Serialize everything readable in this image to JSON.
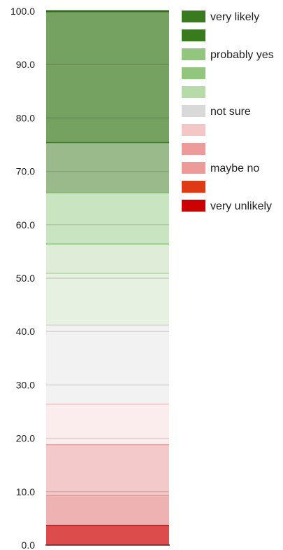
{
  "chart_data": {
    "type": "bar",
    "stacked": true,
    "title": "",
    "xlabel": "",
    "ylabel": "",
    "ylim": [
      0,
      100
    ],
    "yticks": [
      "0.0",
      "10.0",
      "20.0",
      "30.0",
      "40.0",
      "50.0",
      "60.0",
      "70.0",
      "80.0",
      "90.0",
      "100.0"
    ],
    "grid": true,
    "legend_position": "right",
    "segments": [
      {
        "from": 0.0,
        "to": 3.8,
        "fill": "#dd4c4c",
        "edge": "#cc1111"
      },
      {
        "from": 3.8,
        "to": 9.4,
        "fill": "#efb2b2",
        "edge": "#e39a9a"
      },
      {
        "from": 9.4,
        "to": 18.9,
        "fill": "#f4c9c9",
        "edge": "#e8a3a3"
      },
      {
        "from": 18.9,
        "to": 26.5,
        "fill": "#fbeded",
        "edge": "#f4c6c6"
      },
      {
        "from": 26.5,
        "to": 41.3,
        "fill": "#f2f2f2",
        "edge": "#d8d8d8"
      },
      {
        "from": 41.3,
        "to": 51.0,
        "fill": "#e7f1e2",
        "edge": "#b8daae"
      },
      {
        "from": 51.0,
        "to": 56.5,
        "fill": "#deecd8",
        "edge": "#8fc480"
      },
      {
        "from": 56.5,
        "to": 66.1,
        "fill": "#c9e4c0",
        "edge": "#7fba70"
      },
      {
        "from": 66.1,
        "to": 75.5,
        "fill": "#9aba8c",
        "edge": "#3a7a24"
      },
      {
        "from": 75.5,
        "to": 100.0,
        "fill": "#75a261",
        "edge": "#356e1f"
      }
    ],
    "legend": [
      {
        "label": "very likely",
        "color": "#3a7a1f"
      },
      {
        "label": "",
        "color": "#3a7a1f"
      },
      {
        "label": "probably yes",
        "color": "#92c67e"
      },
      {
        "label": "",
        "color": "#92c67e"
      },
      {
        "label": "",
        "color": "#b7dba8"
      },
      {
        "label": "not sure",
        "color": "#d9d9d9"
      },
      {
        "label": "",
        "color": "#f5c6c6"
      },
      {
        "label": "",
        "color": "#ec9a9a"
      },
      {
        "label": "maybe no",
        "color": "#ec9a9a"
      },
      {
        "label": "",
        "color": "#de3a16"
      },
      {
        "label": "very unlikely",
        "color": "#cc0000"
      }
    ]
  }
}
